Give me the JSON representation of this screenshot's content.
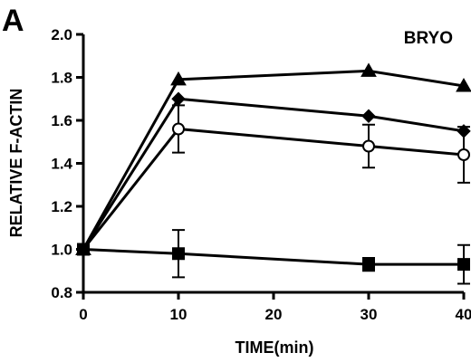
{
  "figure": {
    "panel_label": "A",
    "annotation": "BRYO"
  },
  "chart_data": {
    "type": "line",
    "xlabel": "TIME(min)",
    "ylabel": "RELATIVE F-ACTIN",
    "xlim": [
      0,
      40
    ],
    "ylim": [
      0.8,
      2.0
    ],
    "xticks": [
      0,
      10,
      20,
      30,
      40
    ],
    "yticks": [
      0.8,
      1.0,
      1.2,
      1.4,
      1.6,
      1.8,
      2.0
    ],
    "ytick_labels": [
      "0.8",
      "1.0",
      "1.2",
      "1.4",
      "1.6",
      "1.8",
      "2.0"
    ],
    "grid": false,
    "series": [
      {
        "marker": "triangle",
        "fill": "#000000",
        "x": [
          0,
          10,
          30,
          40
        ],
        "y": [
          1.0,
          1.79,
          1.83,
          1.76
        ],
        "err": [
          0,
          0,
          0,
          0
        ]
      },
      {
        "marker": "diamond",
        "fill": "#000000",
        "x": [
          0,
          10,
          30,
          40
        ],
        "y": [
          1.0,
          1.7,
          1.62,
          1.55
        ],
        "err": [
          0,
          0,
          0,
          0
        ]
      },
      {
        "marker": "circle-open",
        "fill": "#ffffff",
        "x": [
          0,
          10,
          30,
          40
        ],
        "y": [
          1.0,
          1.56,
          1.48,
          1.44
        ],
        "err": [
          0,
          0.11,
          0.1,
          0.13
        ]
      },
      {
        "marker": "square",
        "fill": "#000000",
        "x": [
          0,
          10,
          30,
          40
        ],
        "y": [
          1.0,
          0.98,
          0.93,
          0.93
        ],
        "err": [
          0,
          0.11,
          0.03,
          0.09
        ]
      }
    ]
  }
}
